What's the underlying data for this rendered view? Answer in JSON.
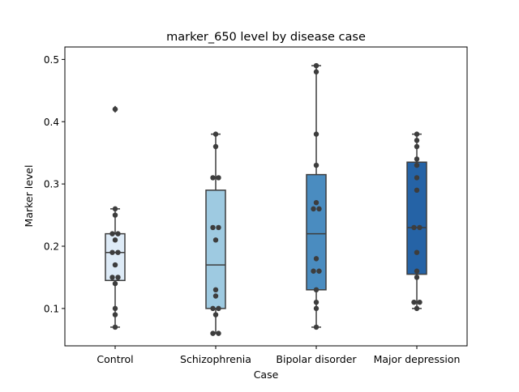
{
  "chart_data": {
    "type": "box",
    "title": "marker_650 level by disease case",
    "xlabel": "Case",
    "ylabel": "Marker level",
    "ylim": [
      0.04,
      0.52
    ],
    "yticks": [
      0.1,
      0.2,
      0.3,
      0.4,
      0.5
    ],
    "ytick_labels": [
      "0.1",
      "0.2",
      "0.3",
      "0.4",
      "0.5"
    ],
    "grid": false,
    "groups": [
      {
        "name": "Control",
        "color": "#deebf7",
        "q1": 0.145,
        "median": 0.19,
        "q3": 0.22,
        "whisker_low": 0.07,
        "whisker_high": 0.26,
        "fliers": [
          0.42
        ],
        "points": [
          0.07,
          0.09,
          0.1,
          0.14,
          0.15,
          0.15,
          0.17,
          0.19,
          0.19,
          0.21,
          0.22,
          0.22,
          0.25,
          0.26,
          0.42
        ]
      },
      {
        "name": "Schizophrenia",
        "color": "#9ecae1",
        "q1": 0.1,
        "median": 0.17,
        "q3": 0.29,
        "whisker_low": 0.06,
        "whisker_high": 0.38,
        "fliers": [],
        "points": [
          0.06,
          0.06,
          0.09,
          0.1,
          0.1,
          0.12,
          0.13,
          0.21,
          0.23,
          0.23,
          0.31,
          0.31,
          0.36,
          0.38
        ]
      },
      {
        "name": "Bipolar disorder",
        "color": "#4a8cc0",
        "q1": 0.13,
        "median": 0.22,
        "q3": 0.315,
        "whisker_low": 0.07,
        "whisker_high": 0.49,
        "fliers": [],
        "points": [
          0.07,
          0.1,
          0.11,
          0.13,
          0.16,
          0.16,
          0.18,
          0.26,
          0.26,
          0.27,
          0.33,
          0.38,
          0.48,
          0.49
        ]
      },
      {
        "name": "Major depression",
        "color": "#2563a6",
        "q1": 0.155,
        "median": 0.23,
        "q3": 0.335,
        "whisker_low": 0.1,
        "whisker_high": 0.38,
        "fliers": [],
        "points": [
          0.1,
          0.11,
          0.11,
          0.15,
          0.16,
          0.19,
          0.23,
          0.23,
          0.29,
          0.31,
          0.33,
          0.34,
          0.36,
          0.37,
          0.38
        ]
      }
    ]
  }
}
